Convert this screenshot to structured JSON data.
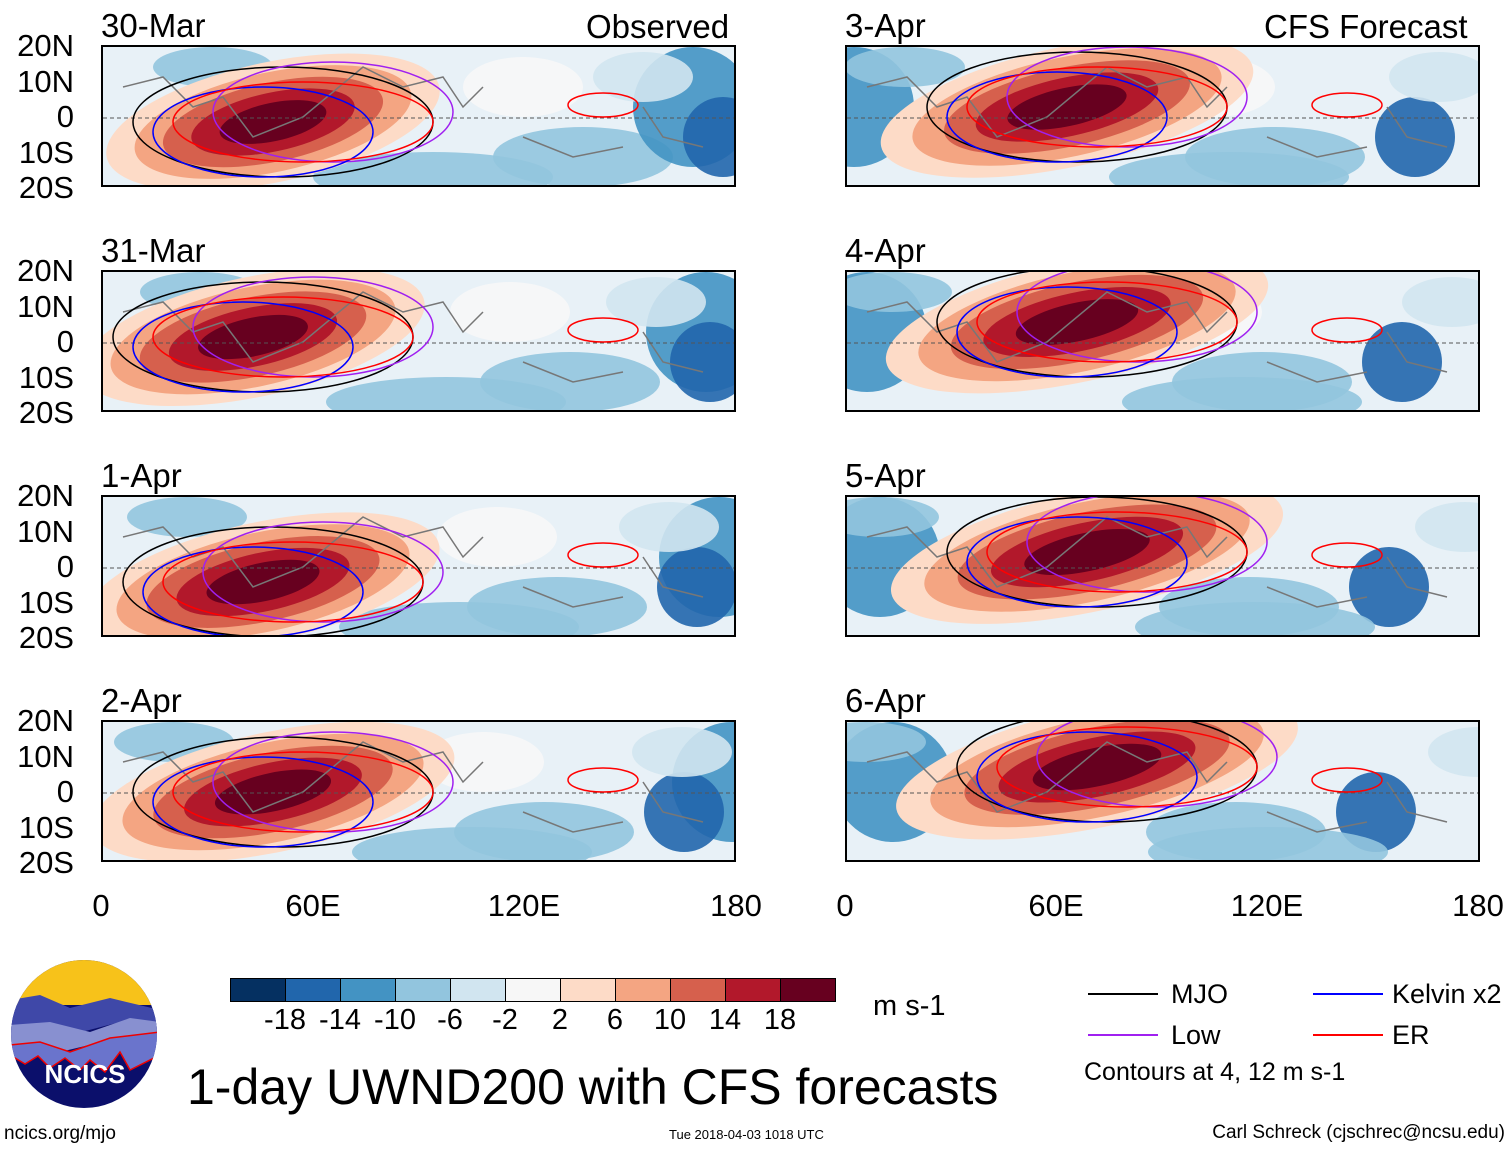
{
  "title": "1-day UWND200 with CFS forecasts",
  "observed_label": "Observed",
  "forecast_label": "CFS Forecast",
  "left_panels": [
    "30-Mar",
    "31-Mar",
    "1-Apr",
    "2-Apr"
  ],
  "right_panels": [
    "3-Apr",
    "4-Apr",
    "5-Apr",
    "6-Apr"
  ],
  "lat_labels": [
    "20N",
    "10N",
    "0",
    "10S",
    "20S"
  ],
  "lon_labels": [
    "0",
    "60E",
    "120E",
    "180"
  ],
  "colorbar": {
    "colors": [
      "#053061",
      "#2166ac",
      "#4393c3",
      "#92c5de",
      "#d1e5f0",
      "#f7f7f7",
      "#fddbc7",
      "#f4a582",
      "#d6604d",
      "#b2182b",
      "#67001f"
    ],
    "labels": [
      "-18",
      "-14",
      "-10",
      "-6",
      "-2",
      "2",
      "6",
      "10",
      "14",
      "18"
    ],
    "units": "m s-1"
  },
  "legend": {
    "items": [
      {
        "label": "MJO",
        "color": "#000000"
      },
      {
        "label": "Kelvin x2",
        "color": "#0000ff"
      },
      {
        "label": "Low",
        "color": "#a020f0"
      },
      {
        "label": "ER",
        "color": "#ff0000"
      }
    ],
    "note": "Contours at 4, 12 m s-1"
  },
  "logo_text": "NCICS",
  "url": "ncics.org/mjo",
  "timestamp": "Tue 2018-04-03 1018 UTC",
  "author": "Carl Schreck (cjschrec@ncsu.edu)"
}
